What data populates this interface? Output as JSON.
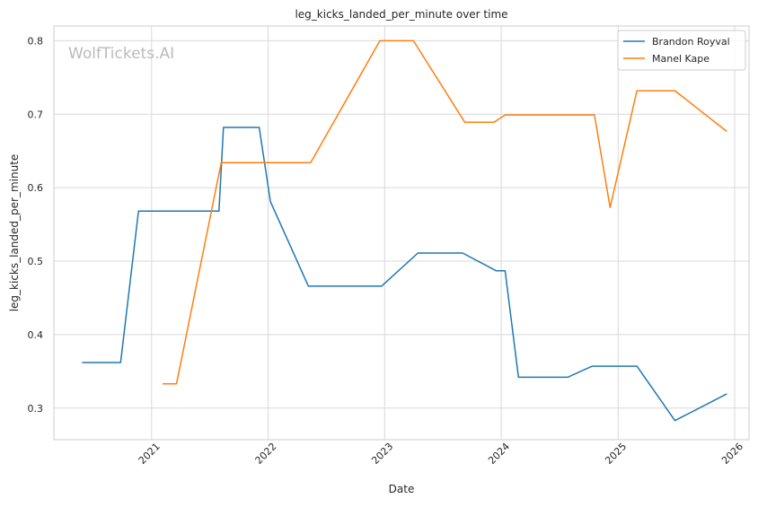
{
  "chart_data": {
    "type": "line",
    "title": "leg_kicks_landed_per_minute over time",
    "xlabel": "Date",
    "ylabel": "leg_kicks_landed_per_minute",
    "watermark": "WolfTickets.AI",
    "grid": true,
    "legend_position": "top-right",
    "xlim": [
      "2020-03-01",
      "2026-02-15"
    ],
    "ylim": [
      0.257,
      0.82
    ],
    "x_ticks": [
      "2021-01-01",
      "2022-01-01",
      "2023-01-01",
      "2024-01-01",
      "2025-01-01",
      "2026-01-01"
    ],
    "x_tick_labels": [
      "2021",
      "2022",
      "2023",
      "2024",
      "2025",
      "2026"
    ],
    "y_ticks": [
      0.3,
      0.4,
      0.5,
      0.6,
      0.7,
      0.8
    ],
    "y_tick_labels": [
      "0.3",
      "0.4",
      "0.5",
      "0.6",
      "0.7",
      "0.8"
    ],
    "series": [
      {
        "name": "Brandon Royval",
        "color": "#1f77b4",
        "points": [
          [
            "2020-05-30",
            0.362
          ],
          [
            "2020-09-26",
            0.362
          ],
          [
            "2020-11-21",
            0.568
          ],
          [
            "2021-07-31",
            0.568
          ],
          [
            "2021-08-14",
            0.682
          ],
          [
            "2021-12-04",
            0.682
          ],
          [
            "2022-01-08",
            0.581
          ],
          [
            "2022-05-07",
            0.466
          ],
          [
            "2022-12-22",
            0.466
          ],
          [
            "2023-04-15",
            0.511
          ],
          [
            "2023-09-02",
            0.511
          ],
          [
            "2023-12-16",
            0.487
          ],
          [
            "2024-01-13",
            0.487
          ],
          [
            "2024-02-24",
            0.342
          ],
          [
            "2024-07-27",
            0.342
          ],
          [
            "2024-10-12",
            0.357
          ],
          [
            "2025-03-01",
            0.357
          ],
          [
            "2025-06-28",
            0.283
          ],
          [
            "2025-12-06",
            0.319
          ]
        ]
      },
      {
        "name": "Manel Kape",
        "color": "#ff7f0e",
        "points": [
          [
            "2021-02-06",
            0.333
          ],
          [
            "2021-03-20",
            0.333
          ],
          [
            "2021-08-07",
            0.634
          ],
          [
            "2022-05-14",
            0.634
          ],
          [
            "2022-12-17",
            0.8
          ],
          [
            "2023-04-01",
            0.8
          ],
          [
            "2023-09-09",
            0.689
          ],
          [
            "2023-12-09",
            0.689
          ],
          [
            "2024-01-13",
            0.699
          ],
          [
            "2024-10-19",
            0.699
          ],
          [
            "2024-12-07",
            0.573
          ],
          [
            "2025-03-01",
            0.732
          ],
          [
            "2025-06-28",
            0.732
          ],
          [
            "2025-12-06",
            0.677
          ]
        ]
      }
    ]
  }
}
